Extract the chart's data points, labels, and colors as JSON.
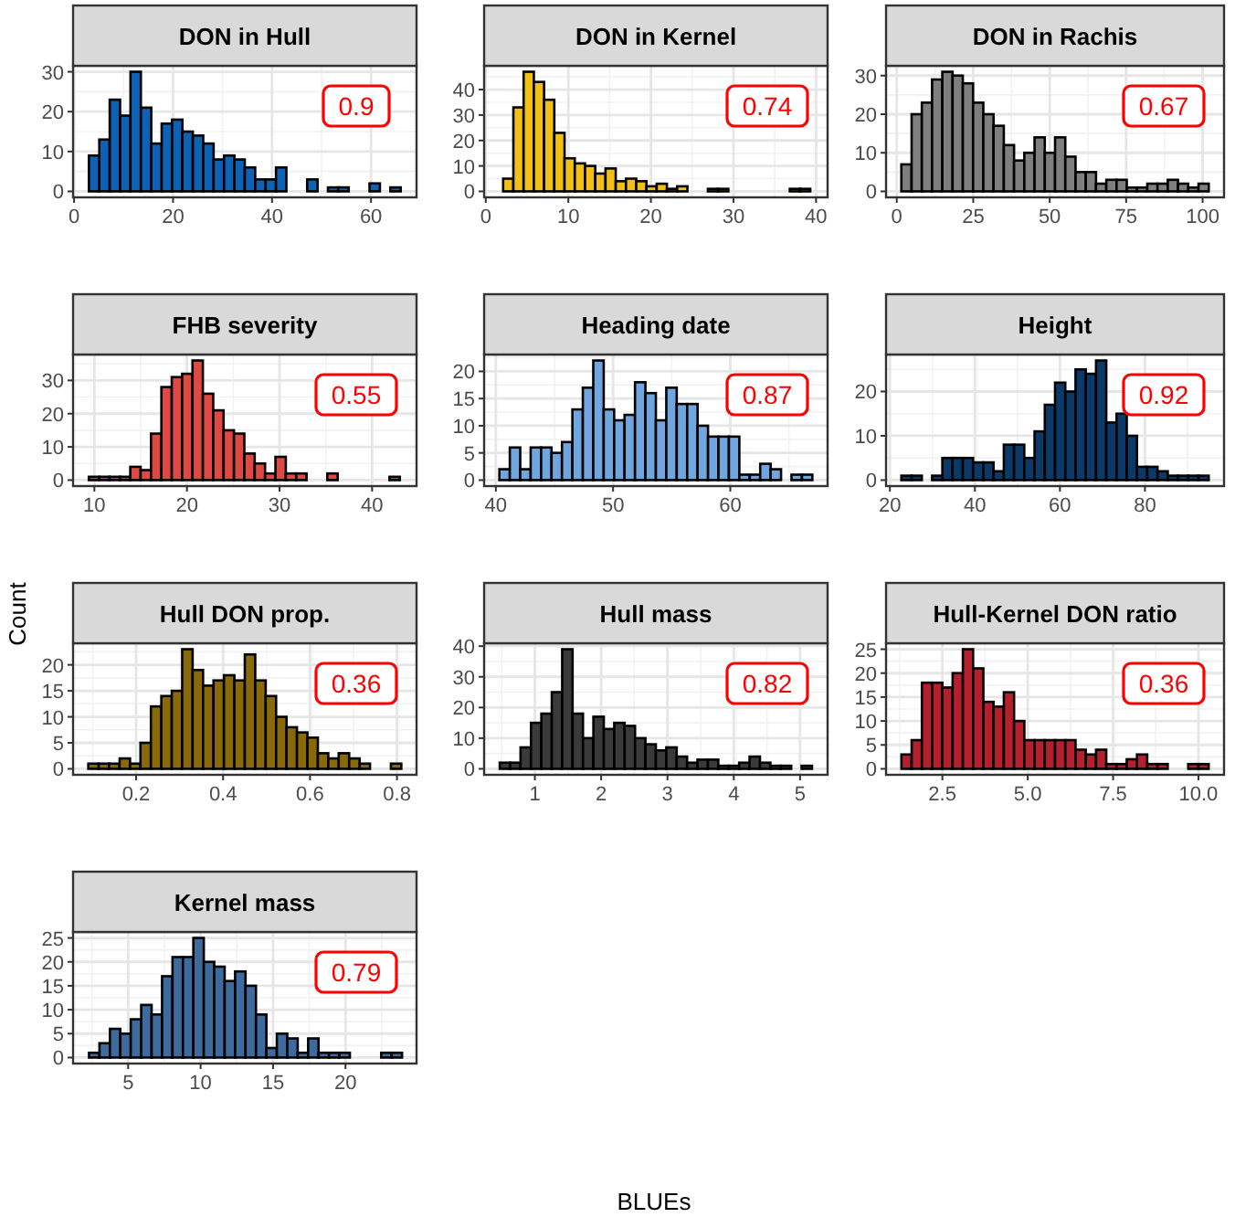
{
  "chart_data": [
    {
      "type": "histogram",
      "title": "DON in Hull",
      "color": "#0d62b5",
      "bins": [
        3,
        5.1,
        7.2,
        9.3,
        11.4,
        13.5,
        15.6,
        17.7,
        19.8,
        21.9,
        24,
        26.1,
        28.2,
        30.3,
        32.4,
        34.5,
        36.6,
        38.7,
        40.8,
        42.9,
        45,
        47.1,
        49.2,
        51.3,
        53.4,
        55.5,
        57.6,
        59.7,
        61.8,
        63.9,
        66
      ],
      "values": [
        9,
        13,
        23,
        19,
        30,
        21,
        12,
        17,
        18,
        15,
        14,
        12,
        8,
        9,
        8,
        6,
        3,
        3,
        6,
        0,
        0,
        3,
        0,
        1,
        1,
        0,
        0,
        2,
        0,
        1
      ],
      "xlim": [
        -0.2,
        69.2
      ],
      "ylim": [
        -1.5,
        31.5
      ],
      "xticks": [
        0,
        20,
        40,
        60
      ],
      "yticks": [
        0,
        10,
        20,
        30
      ],
      "grid": true,
      "annotations": [
        "0.9"
      ]
    },
    {
      "type": "histogram",
      "title": "DON in Kernel",
      "color": "#f2c014",
      "bins": [
        2.1,
        3.34,
        4.58,
        5.82,
        7.06,
        8.3,
        9.54,
        10.78,
        12.02,
        13.26,
        14.5,
        15.74,
        16.98,
        18.22,
        19.46,
        20.7,
        21.94,
        23.18,
        24.42,
        25.66,
        26.9,
        28.14,
        29.38,
        30.62,
        31.86,
        33.1,
        34.34,
        35.58,
        36.82,
        38.06,
        39.3
      ],
      "values": [
        5,
        33,
        47,
        43,
        36,
        23,
        13,
        11,
        10,
        7,
        9,
        4,
        5,
        4,
        2,
        3,
        1,
        2,
        0,
        0,
        1,
        1,
        0,
        0,
        0,
        0,
        0,
        0,
        1,
        1
      ],
      "xlim": [
        -0.2,
        41.4
      ],
      "ylim": [
        -2.35,
        49.35
      ],
      "xticks": [
        0,
        10,
        20,
        30,
        40
      ],
      "yticks": [
        0,
        10,
        20,
        30,
        40
      ],
      "grid": true,
      "annotations": [
        "0.74"
      ]
    },
    {
      "type": "histogram",
      "title": "DON in Rachis",
      "color": "#7f7f7f",
      "bins": [
        1.5,
        4.85,
        8.2,
        11.55,
        14.9,
        18.25,
        21.6,
        24.95,
        28.3,
        31.65,
        35,
        38.35,
        41.7,
        45.05,
        48.4,
        51.75,
        55.1,
        58.45,
        61.8,
        65.15,
        68.5,
        71.85,
        75.2,
        78.55,
        81.9,
        85.25,
        88.6,
        91.95,
        95.3,
        98.65,
        102
      ],
      "values": [
        7,
        20,
        23,
        29,
        31,
        30,
        28,
        23,
        20,
        17,
        12,
        8,
        10,
        14,
        10,
        14,
        9,
        5,
        5,
        2,
        3,
        3,
        1,
        1,
        2,
        2,
        3,
        2,
        1,
        2
      ],
      "xlim": [
        -3.5,
        107
      ],
      "ylim": [
        -1.55,
        32.55
      ],
      "xticks": [
        0,
        25,
        50,
        75,
        100
      ],
      "yticks": [
        0,
        10,
        20,
        30
      ],
      "grid": true,
      "annotations": [
        "0.67"
      ]
    },
    {
      "type": "histogram",
      "title": "FHB severity",
      "color": "#de4a43",
      "bins": [
        9.4,
        10.52,
        11.64,
        12.76,
        13.88,
        15,
        16.12,
        17.24,
        18.36,
        19.48,
        20.6,
        21.72,
        22.84,
        23.96,
        25.08,
        26.2,
        27.32,
        28.44,
        29.56,
        30.68,
        31.8,
        32.92,
        34.04,
        35.16,
        36.28,
        37.4,
        38.52,
        39.64,
        40.76,
        41.88,
        43
      ],
      "values": [
        1,
        1,
        1,
        1,
        4,
        3,
        14,
        28,
        31,
        32,
        36,
        26,
        21,
        15,
        14,
        8,
        5,
        2,
        7,
        2,
        2,
        0,
        0,
        2,
        0,
        0,
        0,
        0,
        0,
        1
      ],
      "xlim": [
        7.7,
        44.8
      ],
      "ylim": [
        -1.8,
        37.8
      ],
      "xticks": [
        10,
        20,
        30,
        40
      ],
      "yticks": [
        0,
        10,
        20,
        30
      ],
      "grid": true,
      "annotations": [
        "0.55"
      ]
    },
    {
      "type": "histogram",
      "title": "Heading date",
      "color": "#6fa6e0",
      "bins": [
        40.3,
        41.19,
        42.08,
        42.97,
        43.86,
        44.75,
        45.64,
        46.53,
        47.42,
        48.31,
        49.2,
        50.09,
        50.98,
        51.87,
        52.76,
        53.65,
        54.54,
        55.43,
        56.32,
        57.21,
        58.1,
        58.99,
        59.88,
        60.77,
        61.66,
        62.55,
        63.44,
        64.33,
        65.22,
        66.11,
        67
      ],
      "values": [
        2,
        6,
        2,
        6,
        6,
        5,
        7,
        13,
        17,
        22,
        13,
        11,
        12,
        18,
        16,
        11,
        17,
        14,
        14,
        10,
        8,
        8,
        8,
        1,
        1,
        3,
        2,
        0,
        1,
        1
      ],
      "xlim": [
        39,
        68.3
      ],
      "ylim": [
        -1.1,
        23.1
      ],
      "xticks": [
        40,
        50,
        60
      ],
      "yticks": [
        0,
        5,
        10,
        15,
        20
      ],
      "grid": true,
      "annotations": [
        "0.87"
      ]
    },
    {
      "type": "histogram",
      "title": "Height",
      "color": "#0b3a68",
      "bins": [
        22.7,
        25.11,
        27.52,
        29.93,
        32.34,
        34.75,
        37.16,
        39.57,
        41.98,
        44.39,
        46.8,
        49.21,
        51.62,
        54.03,
        56.44,
        58.85,
        61.26,
        63.67,
        66.08,
        68.49,
        70.9,
        73.31,
        75.72,
        78.13,
        80.54,
        82.95,
        85.36,
        87.77,
        90.18,
        92.59,
        95
      ],
      "values": [
        1,
        1,
        0,
        1,
        5,
        5,
        5,
        4,
        4,
        2,
        8,
        8,
        5,
        11,
        17,
        22,
        20,
        25,
        24,
        27,
        13,
        15,
        10,
        3,
        3,
        2,
        1,
        1,
        1,
        1
      ],
      "xlim": [
        19.1,
        98.6
      ],
      "ylim": [
        -1.35,
        28.35
      ],
      "xticks": [
        20,
        40,
        60,
        80
      ],
      "yticks": [
        0,
        10,
        20
      ],
      "grid": true,
      "annotations": [
        "0.92"
      ]
    },
    {
      "type": "histogram",
      "title": "Hull DON prop.",
      "ylabel": "Count",
      "color": "#8a6a08",
      "bins": [
        0.09,
        0.114,
        0.138,
        0.162,
        0.186,
        0.21,
        0.234,
        0.258,
        0.282,
        0.306,
        0.33,
        0.354,
        0.378,
        0.402,
        0.426,
        0.45,
        0.474,
        0.498,
        0.522,
        0.546,
        0.57,
        0.594,
        0.618,
        0.642,
        0.666,
        0.69,
        0.714,
        0.738,
        0.762,
        0.786,
        0.81
      ],
      "values": [
        1,
        1,
        1,
        2,
        1,
        5,
        12,
        14,
        15,
        23,
        19,
        16,
        17,
        18,
        17,
        22,
        17,
        14,
        10,
        8,
        7,
        6,
        3,
        2,
        3,
        2,
        1,
        0,
        0,
        1
      ],
      "xlim": [
        0.055,
        0.845
      ],
      "ylim": [
        -1.15,
        24.15
      ],
      "xticks": [
        0.2,
        0.4,
        0.6,
        0.8
      ],
      "yticks": [
        0,
        5,
        10,
        15,
        20
      ],
      "grid": true,
      "annotations": [
        "0.36"
      ]
    },
    {
      "type": "histogram",
      "title": "Hull mass",
      "xlabel": "BLUEs",
      "color": "#3a3a3a",
      "bins": [
        0.47,
        0.627,
        0.784,
        0.941,
        1.098,
        1.255,
        1.412,
        1.569,
        1.726,
        1.883,
        2.04,
        2.197,
        2.354,
        2.511,
        2.668,
        2.825,
        2.982,
        3.139,
        3.296,
        3.453,
        3.61,
        3.767,
        3.924,
        4.081,
        4.238,
        4.395,
        4.552,
        4.709,
        4.866,
        5.023,
        5.18
      ],
      "values": [
        2,
        2,
        7,
        15,
        18,
        25,
        39,
        18,
        10,
        17,
        13,
        15,
        14,
        10,
        8,
        6,
        7,
        4,
        2,
        3,
        3,
        1,
        1,
        2,
        4,
        2,
        1,
        1,
        0,
        1
      ],
      "xlim": [
        0.235,
        5.415
      ],
      "ylim": [
        -1.95,
        40.95
      ],
      "xticks": [
        1,
        2,
        3,
        4,
        5
      ],
      "yticks": [
        0,
        10,
        20,
        30,
        40
      ],
      "grid": true,
      "annotations": [
        "0.82"
      ]
    },
    {
      "type": "histogram",
      "title": "Hull-Kernel DON ratio",
      "color": "#b51f2e",
      "bins": [
        1.3,
        1.6,
        1.9,
        2.2,
        2.5,
        2.8,
        3.1,
        3.4,
        3.7,
        4,
        4.3,
        4.6,
        4.9,
        5.2,
        5.5,
        5.8,
        6.1,
        6.4,
        6.7,
        7,
        7.3,
        7.6,
        7.9,
        8.2,
        8.5,
        8.8,
        9.1,
        9.4,
        9.7,
        10,
        10.3
      ],
      "values": [
        3,
        6,
        18,
        18,
        17,
        20,
        25,
        21,
        14,
        13,
        16,
        10,
        6,
        6,
        6,
        6,
        6,
        4,
        3,
        4,
        1,
        1,
        2,
        3,
        1,
        1,
        0,
        0,
        1,
        1
      ],
      "xlim": [
        0.85,
        10.75
      ],
      "ylim": [
        -1.25,
        26.25
      ],
      "xticks": [
        2.5,
        {
          "value": 5,
          "label": "5.0"
        },
        7.5,
        {
          "value": 10,
          "label": "10.0"
        }
      ],
      "yticks": [
        0,
        5,
        10,
        15,
        20,
        25
      ],
      "grid": true,
      "annotations": [
        "0.36"
      ]
    },
    {
      "type": "histogram",
      "title": "Kernel mass",
      "color": "#3d6b9e",
      "bins": [
        2.3,
        3.02,
        3.74,
        4.46,
        5.18,
        5.9,
        6.62,
        7.34,
        8.06,
        8.78,
        9.5,
        10.22,
        10.94,
        11.66,
        12.38,
        13.1,
        13.82,
        14.54,
        15.26,
        15.98,
        16.7,
        17.42,
        18.14,
        18.86,
        19.58,
        20.3,
        21.02,
        21.74,
        22.46,
        23.18,
        23.9
      ],
      "values": [
        1,
        3,
        6,
        5,
        8,
        11,
        9,
        17,
        21,
        21,
        25,
        20,
        19,
        16,
        18,
        15,
        9,
        2,
        5,
        4,
        1,
        4,
        1,
        1,
        1,
        0,
        0,
        0,
        1,
        1
      ],
      "xlim": [
        1.2,
        24.9
      ],
      "ylim": [
        -1.25,
        26.25
      ],
      "xticks": [
        5,
        10,
        15,
        20
      ],
      "yticks": [
        0,
        5,
        10,
        15,
        20,
        25
      ],
      "grid": true,
      "annotations": [
        "0.79"
      ]
    }
  ]
}
